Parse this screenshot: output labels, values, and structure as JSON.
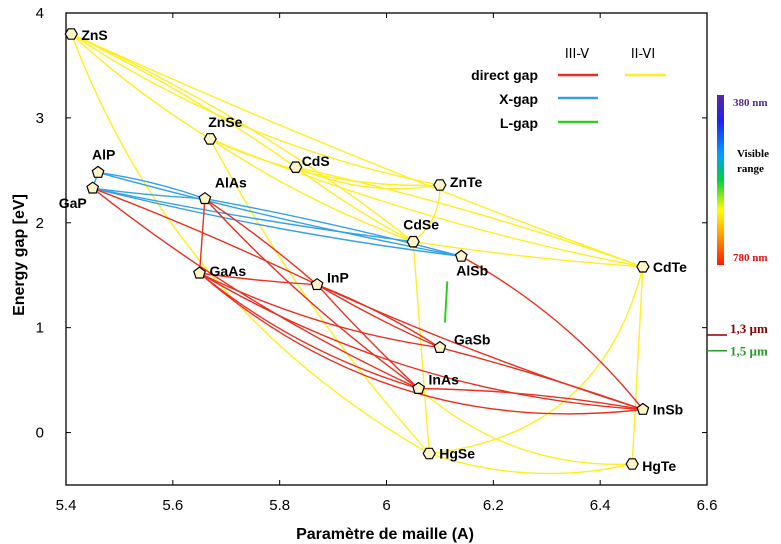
{
  "chart_data": {
    "type": "scatter",
    "xlabel": "Paramètre de maille (A)",
    "ylabel": "Energy gap [eV]",
    "xlim": [
      5.4,
      6.6
    ],
    "ylim": [
      -0.5,
      4
    ],
    "x_ticks": [
      "5.4",
      "5.6",
      "5.8",
      "6",
      "6.2",
      "6.4",
      "6.6"
    ],
    "y_ticks": [
      "4",
      "3",
      "2",
      "1",
      "0"
    ],
    "series_headers": [
      "III-V",
      "II-VI"
    ],
    "legend": [
      {
        "label": "direct gap",
        "iii_v": "#e83020",
        "ii_vi": "#ffee22"
      },
      {
        "label": "X-gap",
        "iii_v": "#33a0e8"
      },
      {
        "label": "L-gap",
        "iii_v": "#33cc22"
      }
    ],
    "colors": {
      "direct_iii_v": "#e83020",
      "direct_ii_vi": "#ffee22",
      "x_gap": "#33a0e8",
      "l_gap": "#33cc22"
    },
    "points": [
      {
        "name": "ZnS",
        "x": 5.41,
        "y": 3.8,
        "shape": "hexagon"
      },
      {
        "name": "ZnSe",
        "x": 5.67,
        "y": 2.8,
        "shape": "hexagon"
      },
      {
        "name": "CdS",
        "x": 5.83,
        "y": 2.53,
        "shape": "hexagon"
      },
      {
        "name": "ZnTe",
        "x": 6.1,
        "y": 2.36,
        "shape": "hexagon"
      },
      {
        "name": "CdSe",
        "x": 6.05,
        "y": 1.82,
        "shape": "hexagon"
      },
      {
        "name": "CdTe",
        "x": 6.48,
        "y": 1.58,
        "shape": "hexagon"
      },
      {
        "name": "HgSe",
        "x": 6.08,
        "y": -0.2,
        "shape": "hexagon"
      },
      {
        "name": "HgTe",
        "x": 6.46,
        "y": -0.3,
        "shape": "hexagon"
      },
      {
        "name": "AlP",
        "x": 5.46,
        "y": 2.48,
        "shape": "pentagon"
      },
      {
        "name": "GaP",
        "x": 5.45,
        "y": 2.33,
        "shape": "pentagon"
      },
      {
        "name": "AlAs",
        "x": 5.66,
        "y": 2.23,
        "shape": "pentagon"
      },
      {
        "name": "GaAs",
        "x": 5.65,
        "y": 1.52,
        "shape": "pentagon"
      },
      {
        "name": "InP",
        "x": 5.87,
        "y": 1.41,
        "shape": "pentagon"
      },
      {
        "name": "AlSb",
        "x": 6.14,
        "y": 1.68,
        "shape": "pentagon"
      },
      {
        "name": "GaSb",
        "x": 6.1,
        "y": 0.81,
        "shape": "pentagon"
      },
      {
        "name": "InAs",
        "x": 6.06,
        "y": 0.42,
        "shape": "pentagon"
      },
      {
        "name": "InSb",
        "x": 6.48,
        "y": 0.22,
        "shape": "pentagon"
      }
    ],
    "visible_range": {
      "title_lines": [
        "Visible",
        "range"
      ],
      "top_label": "380 nm",
      "bottom_label": "780 nm"
    },
    "markers": [
      {
        "label": "1,3 µm",
        "y": 0.93,
        "color": "#8b0000"
      },
      {
        "label": "1,5 µm",
        "y": 0.78,
        "color": "#2a9a2a"
      }
    ]
  }
}
